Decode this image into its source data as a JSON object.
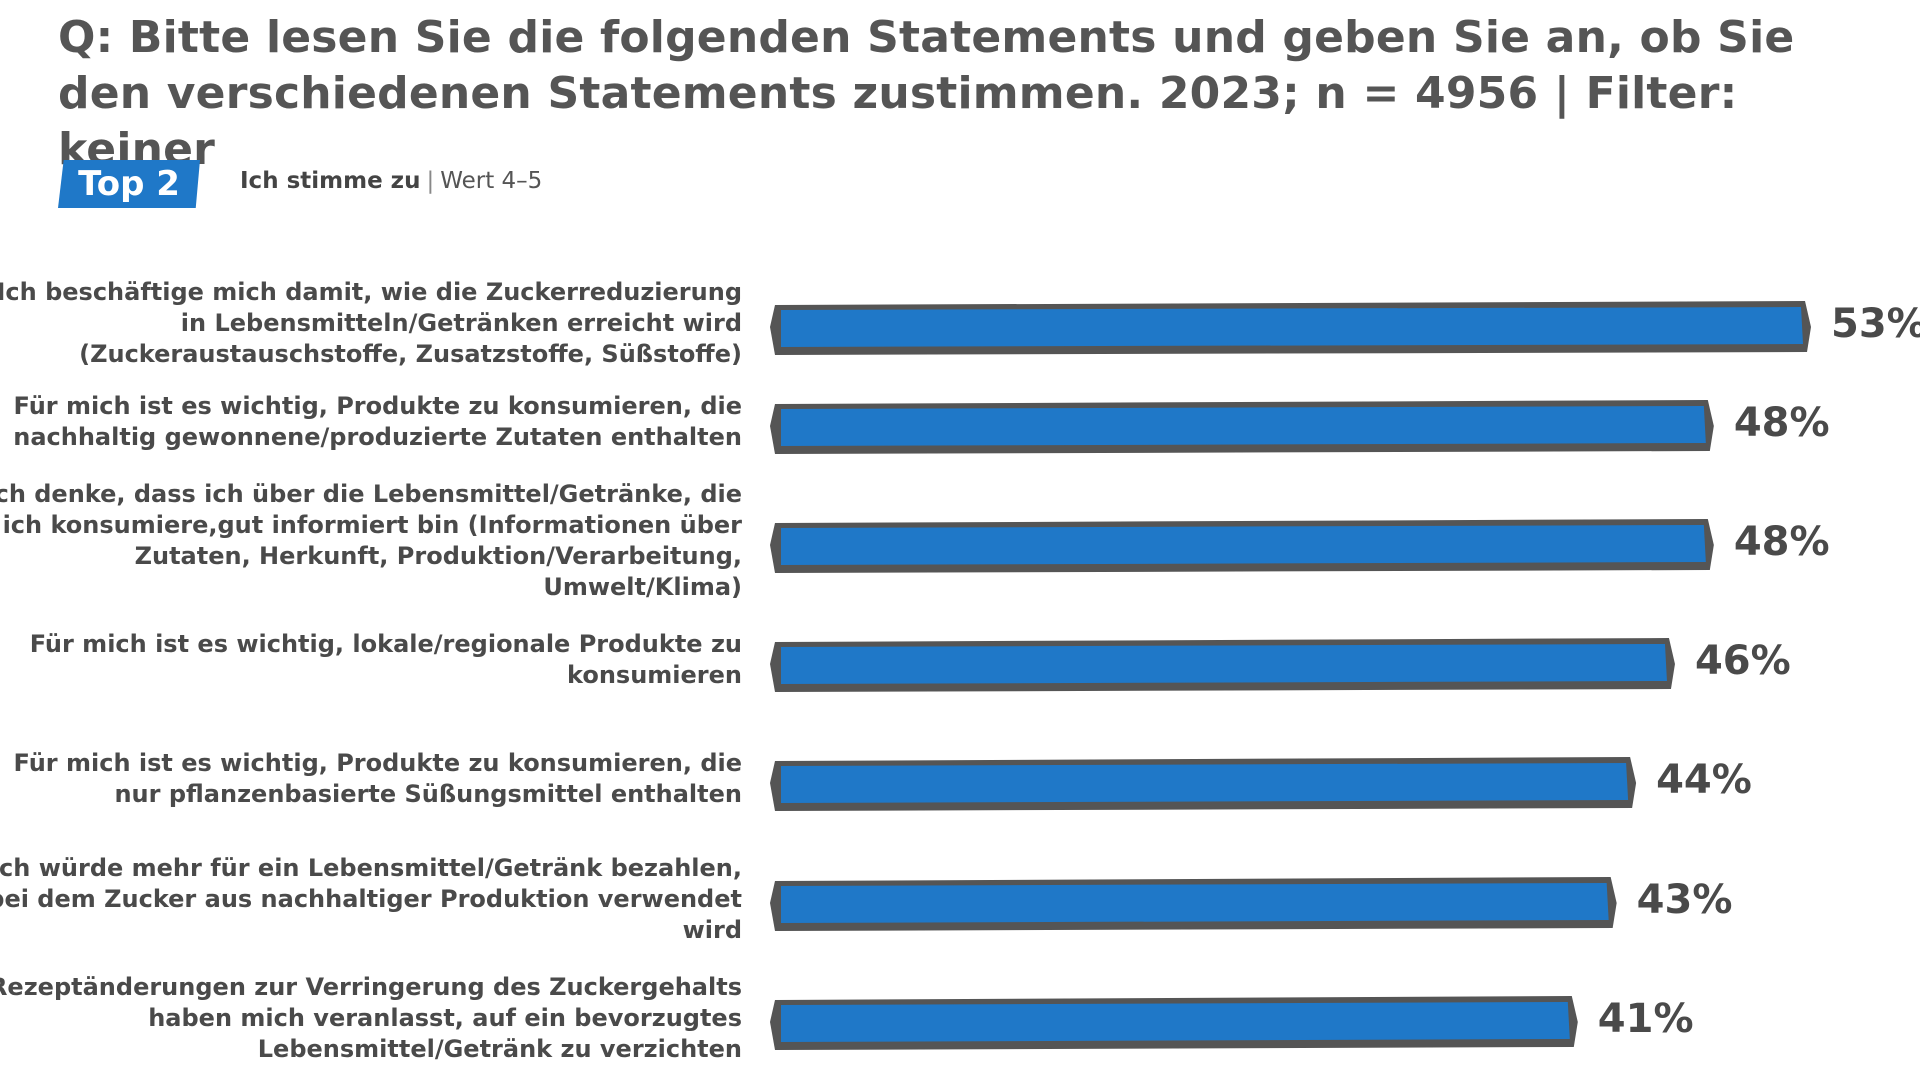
{
  "title": "Q: Bitte lesen Sie die folgenden Statements und geben Sie an, ob Sie den verschiedenen Statements zustimmen. 2023; n = 4956 | Filter: keiner",
  "legend": {
    "badge": "Top 2",
    "label_bold": "Ich stimme zu",
    "separator": "|",
    "label_rest": "Wert 4–5"
  },
  "colors": {
    "bar_fill": "#1f78c8",
    "bar_outline": "#555555",
    "badge": "#1f78c8"
  },
  "chart_data": {
    "type": "bar",
    "orientation": "horizontal",
    "categories": [
      "Ich beschäftige mich damit, wie die Zuckerreduzierung in Lebensmitteln/Getränken erreicht wird (Zuckeraustauschstoffe, Zusatzstoffe, Süßstoffe)",
      "Für mich ist es wichtig, Produkte zu konsumieren, die nachhaltig gewonnene/produzierte Zutaten enthalten",
      "Ich denke, dass ich über die Lebensmittel/Getränke, die ich konsumiere,gut informiert bin (Informationen über Zutaten, Herkunft, Produktion/Verarbeitung, Umwelt/Klima)",
      "Für mich ist es wichtig, lokale/regionale Produkte zu konsumieren",
      "Für mich ist es wichtig, Produkte zu konsumieren, die nur pflanzenbasierte Süßungsmittel enthalten",
      "Ich würde mehr für ein Lebensmittel/Getränk bezahlen, bei dem Zucker aus nachhaltiger Produktion verwendet wird",
      "Rezeptänderungen zur Verringerung des Zuckergehalts haben mich veranlasst, auf ein bevorzugtes Lebensmittel/Getränk zu verzichten"
    ],
    "values": [
      53,
      48,
      48,
      46,
      44,
      43,
      41
    ],
    "value_labels": [
      "53%",
      "48%",
      "48%",
      "46%",
      "44%",
      "43%",
      "41%"
    ],
    "unit": "%",
    "xlim": [
      0,
      53
    ],
    "grid": false,
    "legend": "top-left"
  }
}
